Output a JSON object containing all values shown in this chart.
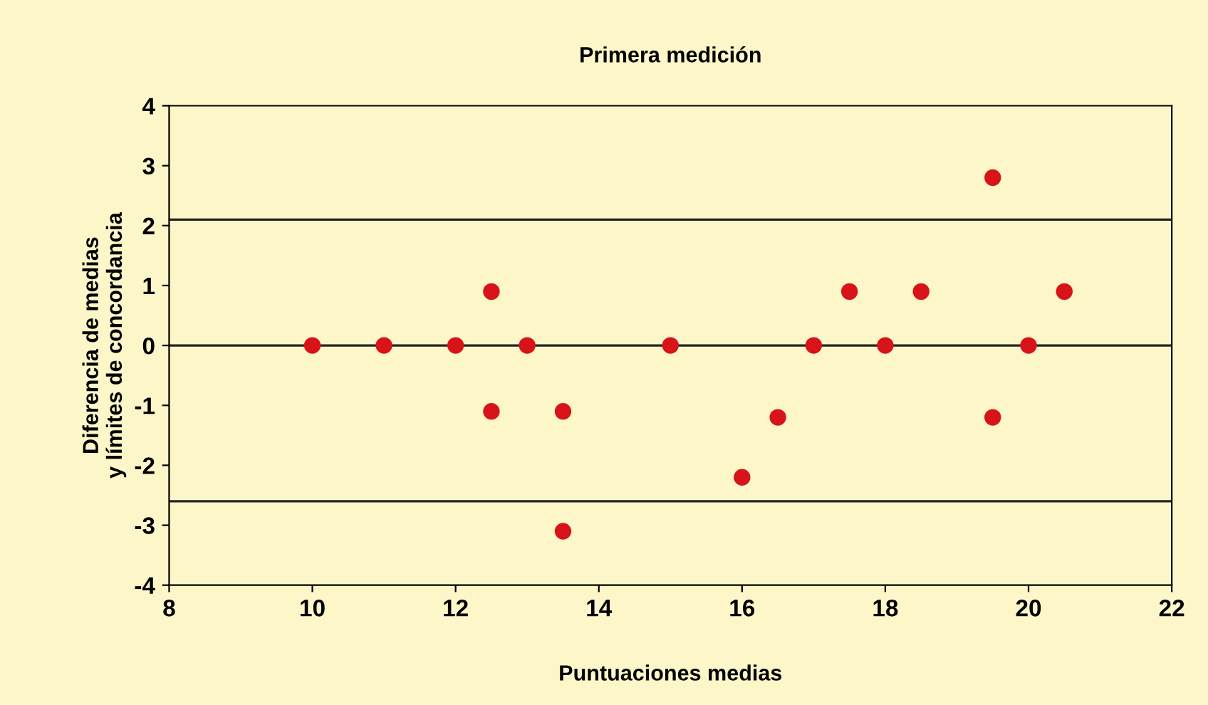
{
  "chart_data": {
    "type": "scatter",
    "title": "Primera medición",
    "xlabel": "Puntuaciones medias",
    "ylabel": "Diferencia de medias\ny límites de concordancia",
    "x": [
      10,
      11,
      12,
      12.5,
      12.5,
      13,
      13.5,
      13.5,
      15,
      16,
      16.5,
      17,
      17.5,
      18,
      18.5,
      19.5,
      19.5,
      20,
      20.5
    ],
    "series": [
      {
        "color": "#d7141a",
        "values": [
          0,
          0,
          0,
          0.9,
          -1.1,
          0,
          -1.1,
          -3.1,
          0,
          -2.2,
          -1.2,
          0,
          0.9,
          0,
          0.9,
          2.8,
          -1.2,
          0,
          0.9
        ]
      }
    ],
    "xlim": [
      8,
      22
    ],
    "ylim": [
      -4,
      4
    ],
    "xticks": [
      8,
      10,
      12,
      14,
      16,
      18,
      20,
      22
    ],
    "yticks": [
      -4,
      -3,
      -2,
      -1,
      0,
      1,
      2,
      3,
      4
    ],
    "ref_lines": [
      {
        "axis": "y",
        "value": 2.1,
        "color": "#222222"
      },
      {
        "axis": "y",
        "value": 0,
        "color": "#222222"
      },
      {
        "axis": "y",
        "value": -2.6,
        "color": "#222222"
      }
    ],
    "grid": false,
    "legend": false,
    "marker": "circle"
  }
}
